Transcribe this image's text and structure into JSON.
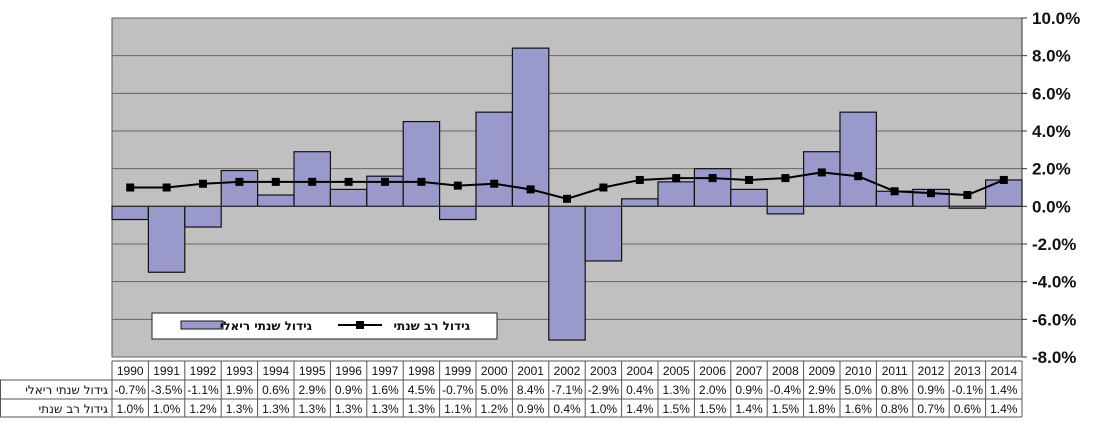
{
  "chart_data": {
    "type": "bar",
    "categories": [
      "1990",
      "1991",
      "1992",
      "1993",
      "1994",
      "1995",
      "1996",
      "1997",
      "1998",
      "1999",
      "2000",
      "2001",
      "2002",
      "2003",
      "2004",
      "2005",
      "2006",
      "2007",
      "2008",
      "2009",
      "2010",
      "2011",
      "2012",
      "2013",
      "2014"
    ],
    "series": [
      {
        "name": "גידול שנתי ריאלי",
        "type": "bar",
        "color": "#9999cc",
        "values": [
          -0.7,
          -3.5,
          -1.1,
          1.9,
          0.6,
          2.9,
          0.9,
          1.6,
          4.5,
          -0.7,
          5.0,
          8.4,
          -7.1,
          -2.9,
          0.4,
          1.3,
          2.0,
          0.9,
          -0.4,
          2.9,
          5.0,
          0.8,
          0.9,
          -0.1,
          1.4
        ],
        "labels": [
          "-0.7%",
          "-3.5%",
          "-1.1%",
          "1.9%",
          "0.6%",
          "2.9%",
          "0.9%",
          "1.6%",
          "4.5%",
          "-0.7%",
          "5.0%",
          "8.4%",
          "-7.1%",
          "-2.9%",
          "0.4%",
          "1.3%",
          "2.0%",
          "0.9%",
          "-0.4%",
          "2.9%",
          "5.0%",
          "0.8%",
          "0.9%",
          "-0.1%",
          "1.4%"
        ]
      },
      {
        "name": "גידול רב שנתי",
        "type": "line",
        "color": "#000000",
        "values": [
          1.0,
          1.0,
          1.2,
          1.3,
          1.3,
          1.3,
          1.3,
          1.3,
          1.3,
          1.1,
          1.2,
          0.9,
          0.4,
          1.0,
          1.4,
          1.5,
          1.5,
          1.4,
          1.5,
          1.8,
          1.6,
          0.8,
          0.7,
          0.6,
          1.4
        ],
        "labels": [
          "1.0%",
          "1.0%",
          "1.2%",
          "1.3%",
          "1.3%",
          "1.3%",
          "1.3%",
          "1.3%",
          "1.3%",
          "1.1%",
          "1.2%",
          "0.9%",
          "0.4%",
          "1.0%",
          "1.4%",
          "1.5%",
          "1.5%",
          "1.4%",
          "1.5%",
          "1.8%",
          "1.6%",
          "0.8%",
          "0.7%",
          "0.6%",
          "1.4%"
        ]
      }
    ],
    "yticks": [
      "10.0%",
      "8.0%",
      "6.0%",
      "4.0%",
      "2.0%",
      "0.0%",
      "-2.0%",
      "-4.0%",
      "-6.0%",
      "-8.0%"
    ],
    "ylim": [
      -8,
      10
    ],
    "yaxis_side": "right",
    "grid": true,
    "plot_background": "#c0c0c0",
    "legend_position": "bottom-left",
    "data_table": true
  }
}
